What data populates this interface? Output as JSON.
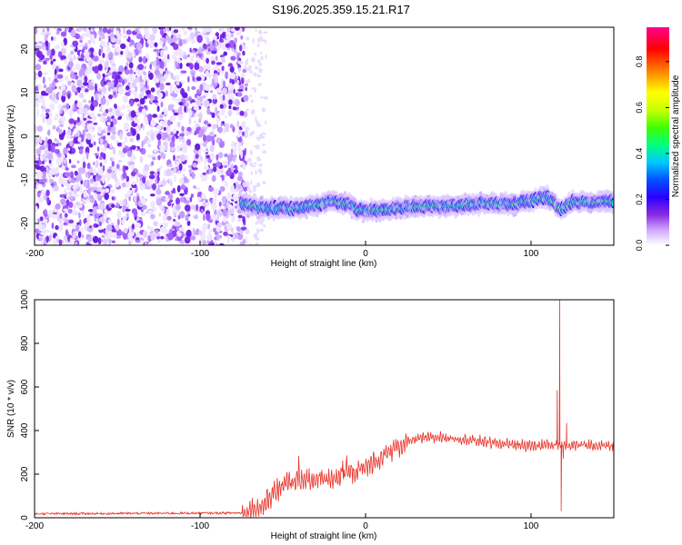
{
  "figure": {
    "title": "S196.2025.359.15.21.R17"
  },
  "chart_data": [
    {
      "type": "heatmap",
      "xlabel": "Height of straight line (km)",
      "ylabel": "Frequency (Hz)",
      "xlim": [
        -200,
        150
      ],
      "ylim": [
        -25,
        25
      ],
      "x_ticks": [
        -200,
        -100,
        0,
        100
      ],
      "y_ticks": [
        20,
        10,
        0,
        -10,
        -20
      ],
      "noise_region_x": [
        -200,
        -72
      ],
      "faint_noise_x": [
        -72,
        -60
      ],
      "signal_track": [
        {
          "x": -75,
          "y": -15.5
        },
        {
          "x": -60,
          "y": -16.5
        },
        {
          "x": -40,
          "y": -16.5
        },
        {
          "x": -20,
          "y": -15
        },
        {
          "x": -10,
          "y": -15.5
        },
        {
          "x": -5,
          "y": -17
        },
        {
          "x": 10,
          "y": -17
        },
        {
          "x": 30,
          "y": -16
        },
        {
          "x": 50,
          "y": -16
        },
        {
          "x": 70,
          "y": -15.5
        },
        {
          "x": 90,
          "y": -15.5
        },
        {
          "x": 110,
          "y": -14
        },
        {
          "x": 118,
          "y": -17
        },
        {
          "x": 125,
          "y": -15
        },
        {
          "x": 150,
          "y": -15
        }
      ],
      "colorbar": {
        "label": "Normalized spectral amplitude",
        "range": [
          0,
          0.95
        ],
        "ticks": [
          0.0,
          0.2,
          0.4,
          0.6,
          0.8
        ]
      },
      "grid": false
    },
    {
      "type": "line",
      "xlabel": "Height of straight line (km)",
      "ylabel": "SNR (10 * v/v)",
      "xlim": [
        -200,
        150
      ],
      "ylim": [
        0,
        1000
      ],
      "x_ticks": [
        -200,
        -100,
        0,
        100
      ],
      "y_ticks": [
        0,
        200,
        400,
        600,
        800,
        1000
      ],
      "line_color": "#e8332a",
      "grid": false,
      "series": [
        {
          "profile": [
            {
              "x": -200,
              "y": 18
            },
            {
              "x": -75,
              "y": 22
            },
            {
              "x": -62,
              "y": 55
            },
            {
              "x": -55,
              "y": 120
            },
            {
              "x": -45,
              "y": 170
            },
            {
              "x": -30,
              "y": 170
            },
            {
              "x": -15,
              "y": 190
            },
            {
              "x": 0,
              "y": 230
            },
            {
              "x": 10,
              "y": 280
            },
            {
              "x": 20,
              "y": 330
            },
            {
              "x": 30,
              "y": 360
            },
            {
              "x": 45,
              "y": 370
            },
            {
              "x": 60,
              "y": 360
            },
            {
              "x": 80,
              "y": 340
            },
            {
              "x": 100,
              "y": 330
            },
            {
              "x": 112,
              "y": 335
            },
            {
              "x": 150,
              "y": 330
            }
          ],
          "spikes": [
            {
              "x": 115.8,
              "y": 585
            },
            {
              "x": 117.3,
              "y": 1000
            },
            {
              "x": 118.2,
              "y": 30
            },
            {
              "x": 119.5,
              "y": 270
            },
            {
              "x": 121.5,
              "y": 435
            }
          ]
        }
      ]
    }
  ]
}
